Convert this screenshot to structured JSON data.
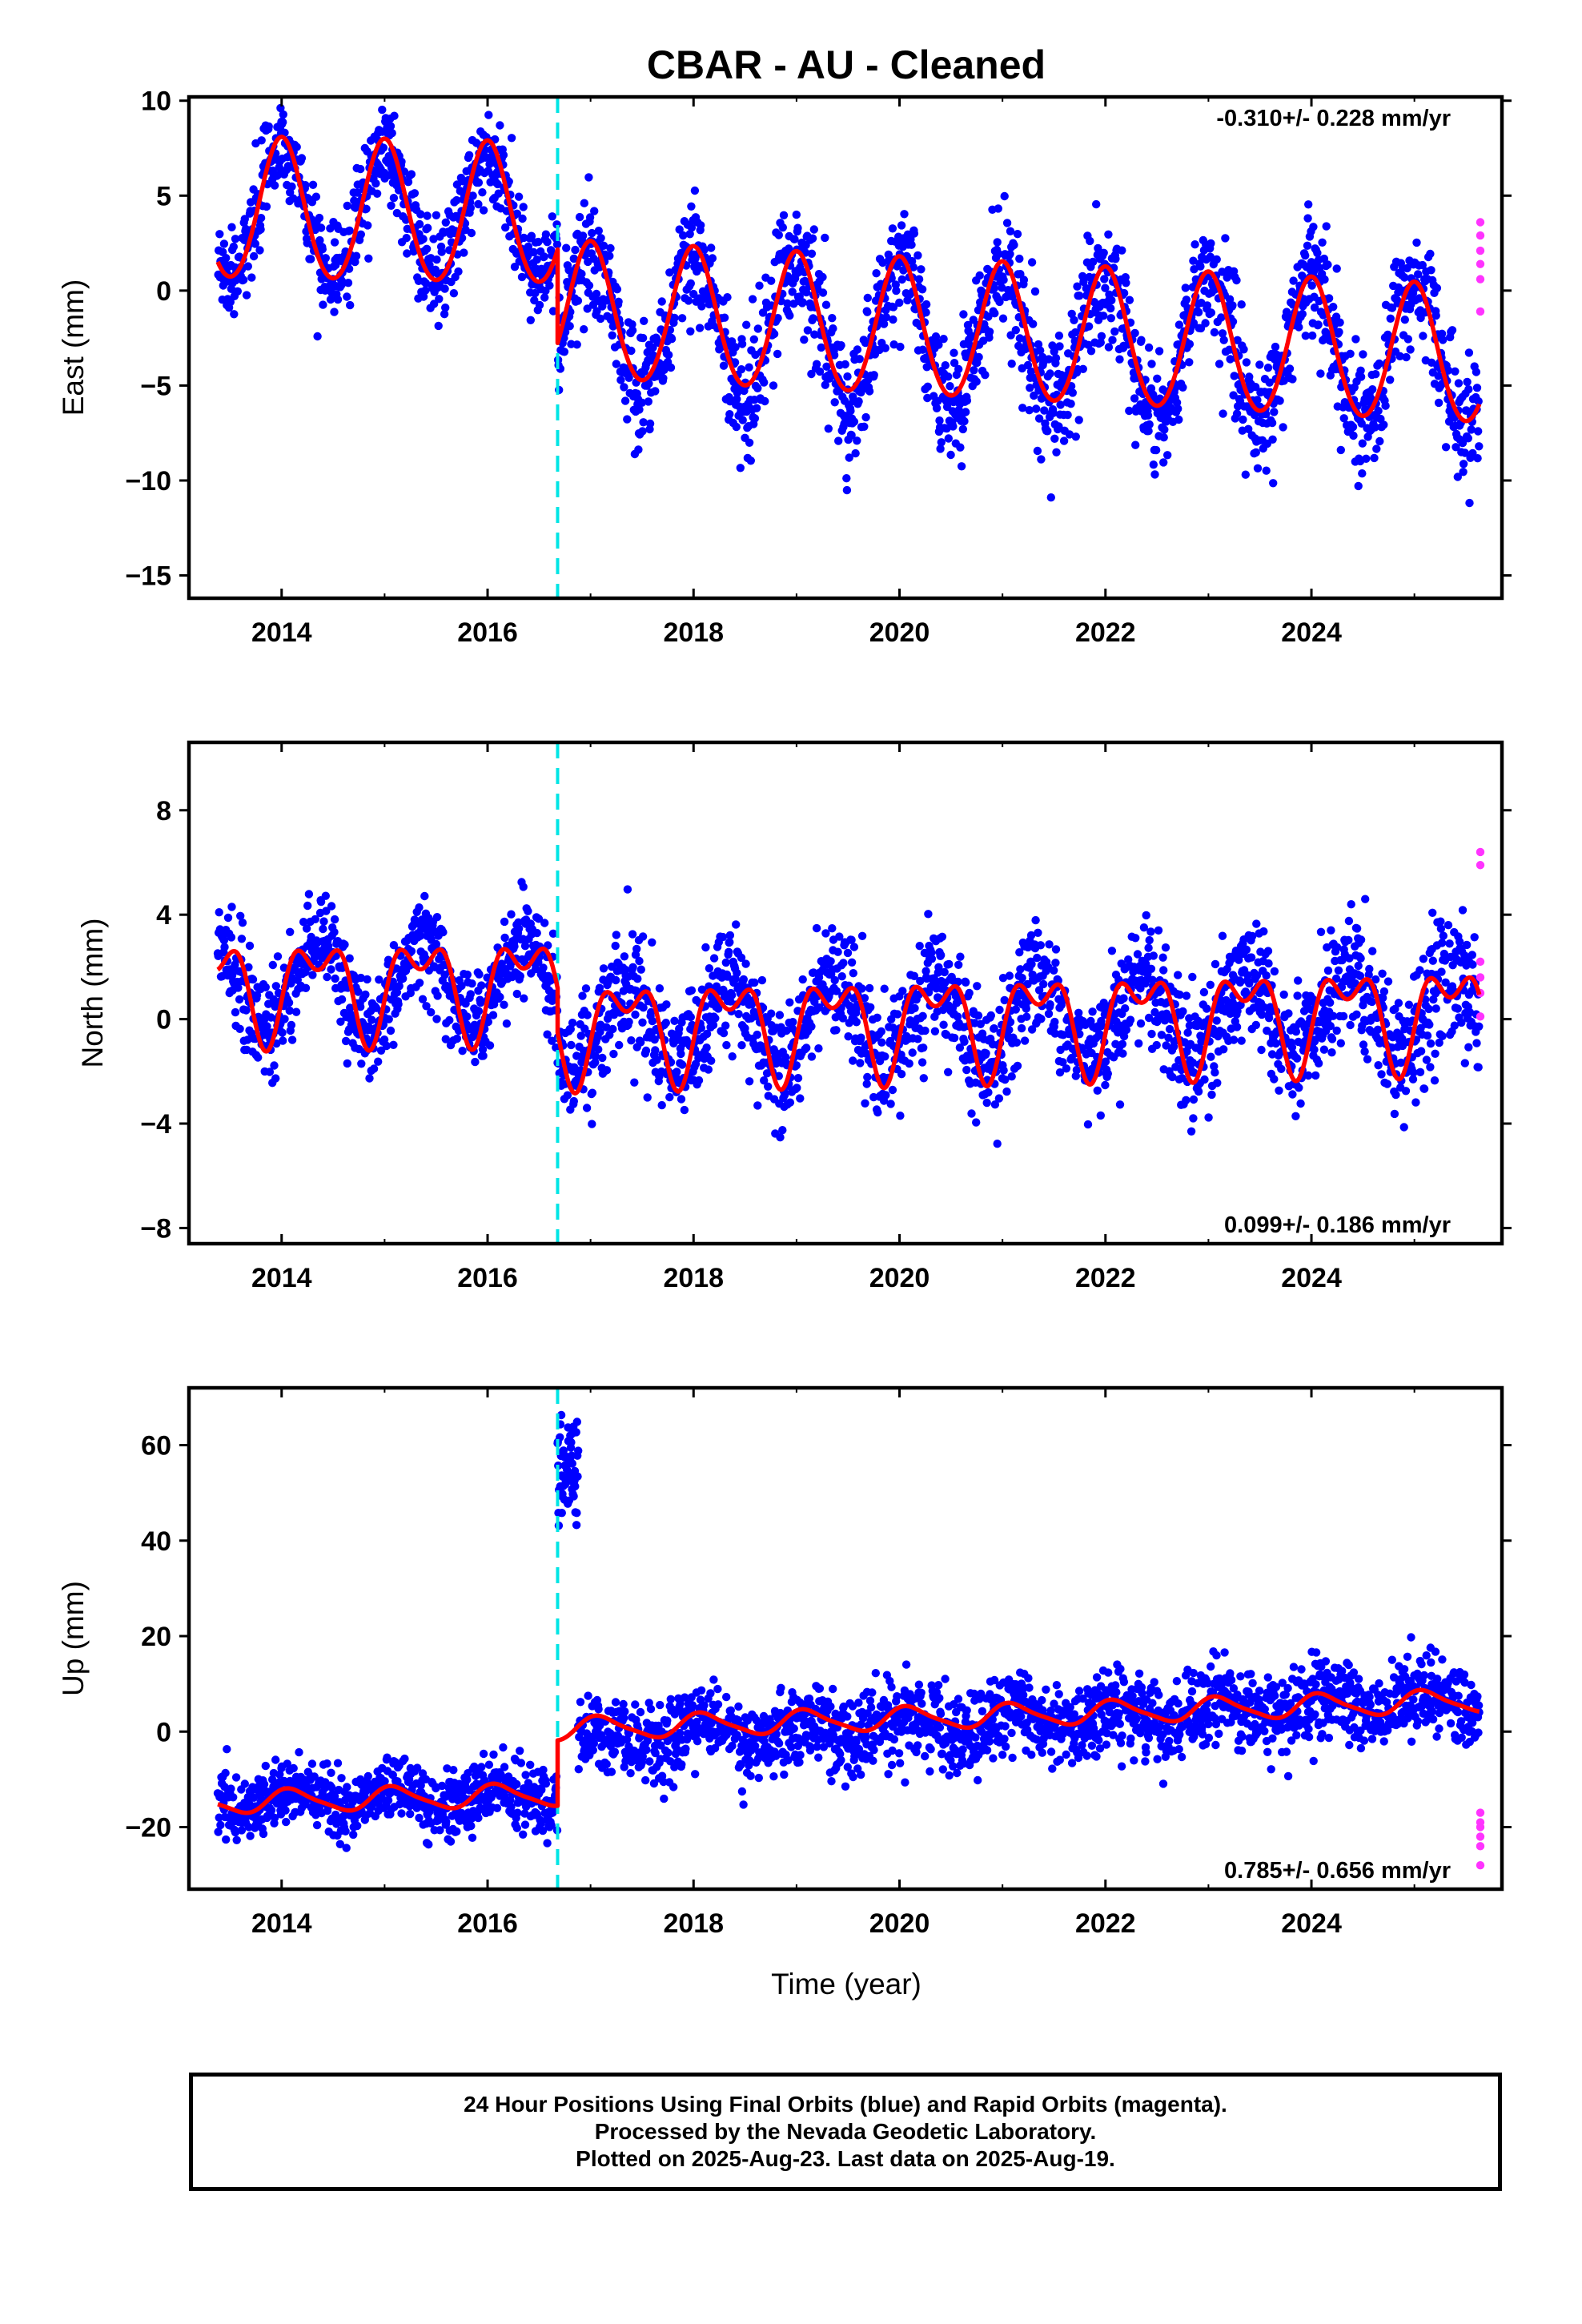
{
  "title": "CBAR  - AU - Cleaned",
  "colors": {
    "final_orbits": "#0000ff",
    "rapid_orbits": "#ff33ff",
    "model": "#ff0000",
    "equipment_change": "#00e5e5",
    "axes": "#000000"
  },
  "xlabel": "Time (year)",
  "x_ticks": [
    "2014",
    "2016",
    "2018",
    "2020",
    "2022",
    "2024"
  ],
  "footer": {
    "line1": "24 Hour Positions Using Final Orbits (blue) and Rapid Orbits (magenta).",
    "line2": "Processed by the Nevada Geodetic Laboratory.",
    "line3": "Plotted on 2025-Aug-23. Last data on 2025-Aug-19."
  },
  "chart_data": [
    {
      "type": "scatter",
      "title": "CBAR  - AU - Cleaned",
      "ylabel": "East (mm)",
      "xlabel": "",
      "xlim": [
        2013.1,
        2025.85
      ],
      "ylim": [
        -16.2,
        10.2
      ],
      "y_ticks": [
        "10",
        "5",
        "0",
        "−5",
        "−10",
        "−15"
      ],
      "y_tick_values": [
        10,
        5,
        0,
        -5,
        -10,
        -15
      ],
      "rate_label": "-0.310+/- 0.228 mm/yr",
      "rate_position": "top-right",
      "equipment_change_year": 2016.68,
      "data_start": 2013.38,
      "data_end": 2025.63,
      "series": [
        {
          "name": "Final Orbits (blue)",
          "pattern": "daily positions",
          "segments": [
            {
              "x0": 2013.38,
              "x1": 2016.68,
              "base0": 4.2,
              "base1": 3.9,
              "amp": 3.2,
              "phase": 0.0,
              "noise": 1.4
            },
            {
              "x0": 2016.68,
              "x1": 2025.63,
              "base0": -1.5,
              "base1": -3.5,
              "amp": 3.6,
              "phase": 0.0,
              "noise": 1.9
            }
          ]
        },
        {
          "name": "Rapid Orbits (magenta)",
          "points": [
            [
              2025.64,
              3.6
            ],
            [
              2025.64,
              2.9
            ],
            [
              2025.64,
              2.1
            ],
            [
              2025.64,
              1.4
            ],
            [
              2025.64,
              0.6
            ],
            [
              2025.64,
              -1.1
            ]
          ]
        }
      ],
      "model": {
        "segments": [
          {
            "x0": 2013.38,
            "x1": 2016.68,
            "base0": 4.2,
            "base1": 3.9,
            "amp1": 3.7,
            "phase1": 0.0,
            "amp2": 0.25,
            "phase2": 0.0
          },
          {
            "x0": 2016.68,
            "x1": 2025.63,
            "base0": -1.1,
            "base1": -3.5,
            "amp1": 3.6,
            "phase1": 0.0,
            "amp2": 0.2,
            "phase2": 0.0
          }
        ]
      }
    },
    {
      "type": "scatter",
      "ylabel": "North (mm)",
      "xlabel": "",
      "xlim": [
        2013.1,
        2025.85
      ],
      "ylim": [
        -8.6,
        10.6
      ],
      "y_ticks": [
        "8",
        "4",
        "0",
        "−4",
        "−8"
      ],
      "y_tick_values": [
        8,
        4,
        0,
        -4,
        -8
      ],
      "rate_label": "0.099+/- 0.186 mm/yr",
      "rate_position": "bottom-right",
      "equipment_change_year": 2016.68,
      "data_start": 2013.38,
      "data_end": 2025.63,
      "series": [
        {
          "name": "Final Orbits (blue)",
          "pattern": "daily positions",
          "segments": [
            {
              "x0": 2013.38,
              "x1": 2016.68,
              "base0": 1.3,
              "base1": 1.4,
              "amp": 1.6,
              "phase": 0.35,
              "noise": 1.1
            },
            {
              "x0": 2016.68,
              "x1": 2025.63,
              "base0": -0.3,
              "base1": 0.3,
              "amp": 1.6,
              "phase": 0.35,
              "noise": 1.4
            }
          ]
        },
        {
          "name": "Rapid Orbits (magenta)",
          "points": [
            [
              2025.64,
              6.4
            ],
            [
              2025.64,
              5.9
            ],
            [
              2025.64,
              2.2
            ],
            [
              2025.64,
              1.6
            ],
            [
              2025.64,
              1.0
            ],
            [
              2025.64,
              0.1
            ]
          ]
        }
      ],
      "model": {
        "segments": [
          {
            "x0": 2013.38,
            "x1": 2016.68,
            "base0": 1.3,
            "base1": 1.4,
            "amp1": 1.55,
            "phase1": 0.35,
            "amp2": 1.0,
            "phase2": 0.6
          },
          {
            "x0": 2016.68,
            "x1": 2025.63,
            "base0": -0.3,
            "base1": 0.3,
            "amp1": 1.55,
            "phase1": 0.35,
            "amp2": 1.0,
            "phase2": 0.6
          }
        ]
      }
    },
    {
      "type": "scatter",
      "ylabel": "Up (mm)",
      "xlabel": "Time (year)",
      "xlim": [
        2013.1,
        2025.85
      ],
      "ylim": [
        -33,
        72
      ],
      "y_ticks": [
        "60",
        "40",
        "20",
        "0",
        "−20"
      ],
      "y_tick_values": [
        60,
        40,
        20,
        0,
        -20
      ],
      "rate_label": "0.785+/- 0.656 mm/yr",
      "rate_position": "bottom-right",
      "equipment_change_year": 2016.68,
      "data_start": 2013.38,
      "data_end": 2025.63,
      "series": [
        {
          "name": "Final Orbits (blue)",
          "pattern": "daily positions",
          "segments": [
            {
              "x0": 2013.38,
              "x1": 2016.68,
              "base0": -14.5,
              "base1": -13.5,
              "amp": 2.2,
              "phase": 0.1,
              "noise": 4.0
            },
            {
              "x0": 2016.68,
              "x1": 2016.88,
              "base0": 55,
              "base1": 55,
              "amp": 0,
              "phase": 0,
              "noise": 7.0
            },
            {
              "x0": 2016.88,
              "x1": 2025.63,
              "base0": -2.0,
              "base1": 7.0,
              "amp": 2.2,
              "phase": 0.1,
              "noise": 5.0
            }
          ]
        },
        {
          "name": "Rapid Orbits (magenta)",
          "points": [
            [
              2025.64,
              -17
            ],
            [
              2025.64,
              -19
            ],
            [
              2025.64,
              -20
            ],
            [
              2025.64,
              -22
            ],
            [
              2025.64,
              -24
            ],
            [
              2025.64,
              -28
            ]
          ]
        }
      ],
      "model": {
        "segments": [
          {
            "x0": 2013.38,
            "x1": 2016.68,
            "base0": -14.8,
            "base1": -13.2,
            "amp1": 2.3,
            "phase1": 0.1,
            "amp2": 0.5,
            "phase2": 0.0
          },
          {
            "x0": 2016.68,
            "x1": 2025.63,
            "base0": 0.5,
            "base1": 6.5,
            "amp1": 2.3,
            "phase1": 0.1,
            "amp2": 0.5,
            "phase2": 0.0
          }
        ]
      }
    }
  ]
}
